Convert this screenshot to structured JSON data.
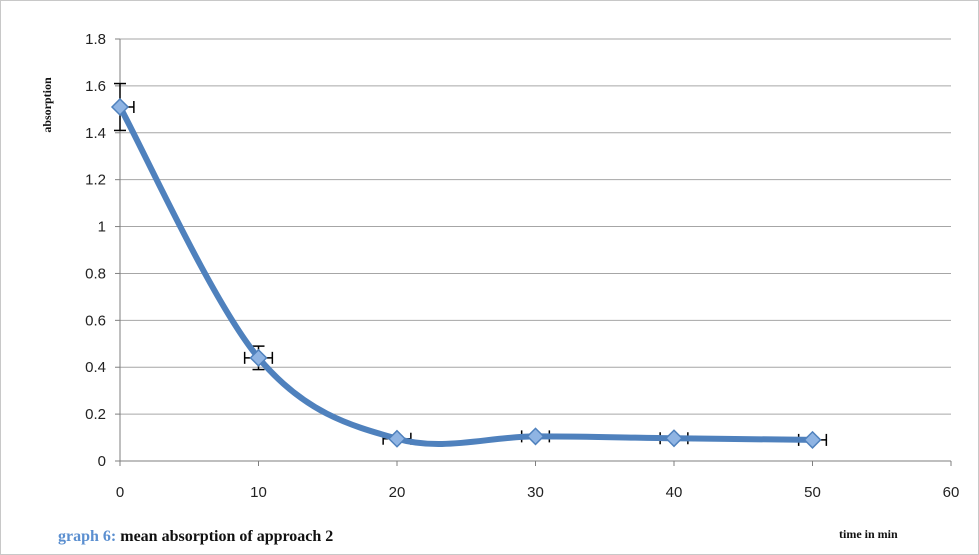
{
  "caption": {
    "prefix": "graph 6:",
    "text": "mean absorption of approach 2"
  },
  "colors": {
    "series": "#4f81bd",
    "marker": "#8fb4e3",
    "caption_prefix": "#5b8fd0",
    "grid": "#a6a6a6",
    "errorbar": "#000000"
  },
  "chart_data": {
    "type": "line",
    "smooth": true,
    "xlabel": "time in min",
    "ylabel": "absorption",
    "xlim": [
      0,
      60
    ],
    "ylim": [
      0,
      1.8
    ],
    "x_ticks": [
      "0",
      "10",
      "20",
      "30",
      "40",
      "50",
      "60"
    ],
    "y_ticks": [
      "0",
      "0.2",
      "0.4",
      "0.6",
      "0.8",
      "1",
      "1.2",
      "1.4",
      "1.6",
      "1.8"
    ],
    "grid": true,
    "series": [
      {
        "x": [
          0,
          10,
          20,
          30,
          40,
          50
        ],
        "y": [
          1.51,
          0.44,
          0.095,
          0.105,
          0.097,
          0.09
        ],
        "y_error": [
          0.1,
          0.05,
          0.01,
          0.01,
          0.01,
          0.01
        ],
        "x_error": [
          1,
          1,
          1,
          1,
          1,
          1
        ],
        "marker": "diamond"
      }
    ]
  }
}
